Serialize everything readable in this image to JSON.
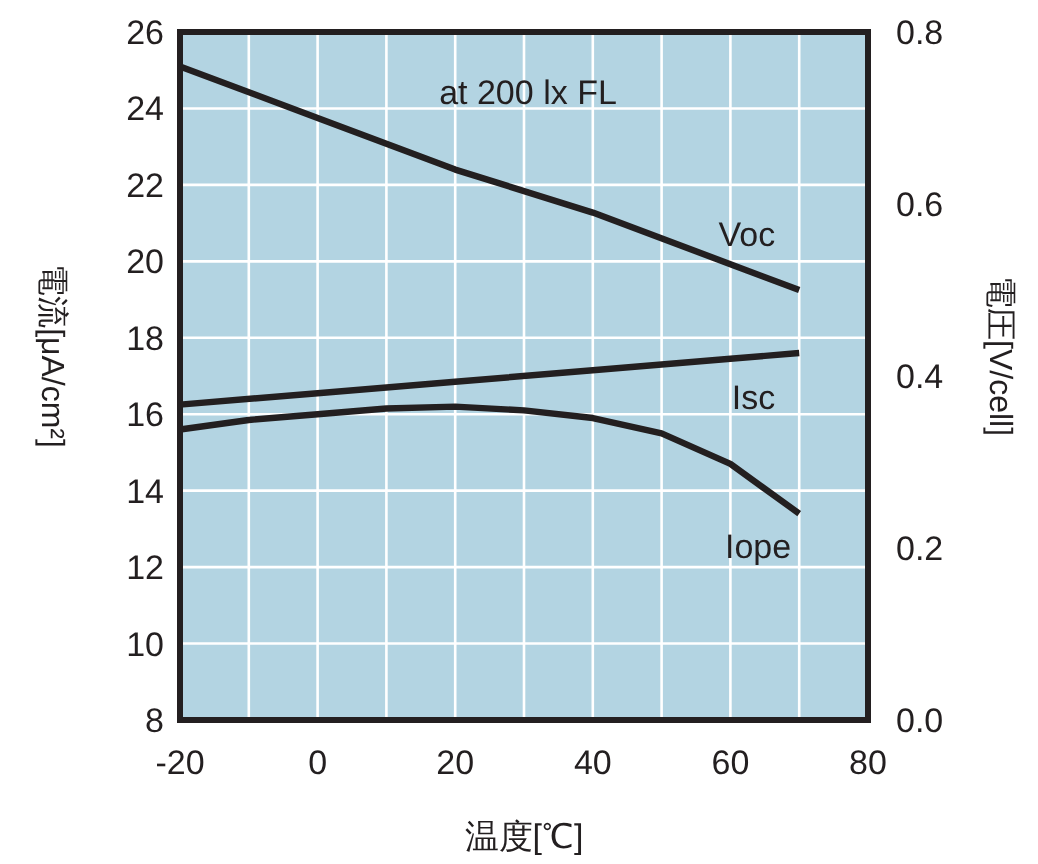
{
  "chart_data": {
    "type": "line",
    "xlabel": "温度[℃]",
    "ylabel": "電流[μA/cm²]",
    "y2label": "電圧[V/cell]",
    "annotations": [
      "at 200 lx FL"
    ],
    "xlim": [
      -20,
      80
    ],
    "xticks": [
      -20,
      0,
      20,
      40,
      60,
      80
    ],
    "ylim": [
      8,
      26
    ],
    "yticks": [
      8,
      10,
      12,
      14,
      16,
      18,
      20,
      22,
      24,
      26
    ],
    "y2lim": [
      0,
      0.8
    ],
    "y2ticks": [
      {
        "value": 0,
        "label": "0.0"
      },
      0.2,
      0.4,
      0.6,
      0.8
    ],
    "grid": true,
    "series": [
      {
        "name": "Voc",
        "color": "#231f20",
        "axis": "y2",
        "x": [
          -20,
          0,
          20,
          40,
          60,
          70
        ],
        "values": [
          0.76,
          0.7,
          0.64,
          0.59,
          0.53,
          0.5
        ]
      },
      {
        "name": "Isc",
        "color": "#231f20",
        "x": [
          -20,
          0,
          20,
          40,
          60,
          70
        ],
        "values": [
          16.25,
          16.55,
          16.85,
          17.15,
          17.45,
          17.6
        ]
      },
      {
        "name": "Iope",
        "color": "#231f20",
        "x": [
          -20,
          -10,
          0,
          10,
          20,
          30,
          40,
          50,
          60,
          70
        ],
        "values": [
          15.6,
          15.85,
          16.0,
          16.15,
          16.2,
          16.1,
          15.9,
          15.5,
          14.7,
          13.4
        ]
      }
    ]
  }
}
